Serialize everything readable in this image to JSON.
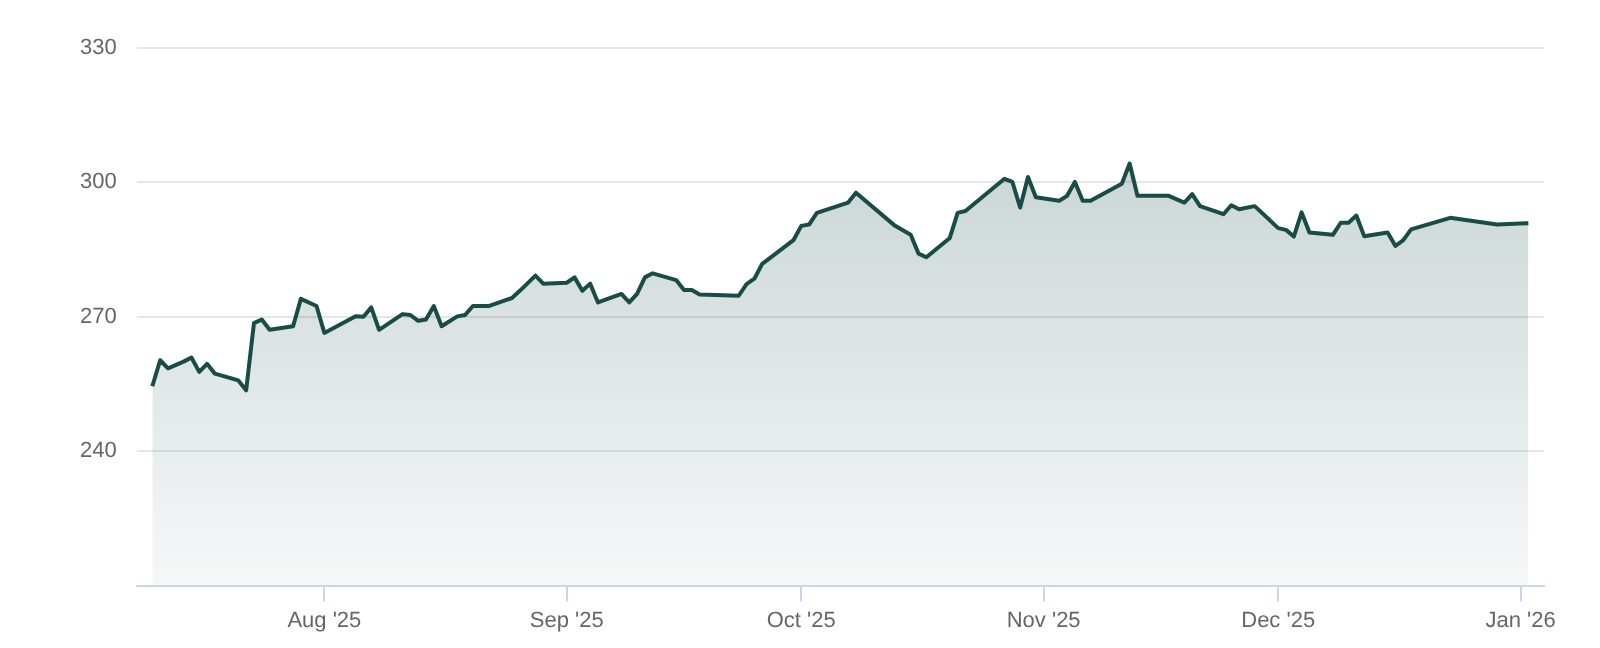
{
  "chart_data": {
    "type": "area",
    "x": [
      "2025-07-10",
      "2025-07-11",
      "2025-07-12",
      "2025-07-14",
      "2025-07-15",
      "2025-07-16",
      "2025-07-17",
      "2025-07-18",
      "2025-07-21",
      "2025-07-22",
      "2025-07-23",
      "2025-07-24",
      "2025-07-25",
      "2025-07-28",
      "2025-07-29",
      "2025-07-31",
      "2025-08-01",
      "2025-08-05",
      "2025-08-06",
      "2025-08-07",
      "2025-08-08",
      "2025-08-11",
      "2025-08-12",
      "2025-08-13",
      "2025-08-14",
      "2025-08-15",
      "2025-08-16",
      "2025-08-18",
      "2025-08-19",
      "2025-08-20",
      "2025-08-22",
      "2025-08-25",
      "2025-08-26",
      "2025-08-28",
      "2025-08-29",
      "2025-09-01",
      "2025-09-02",
      "2025-09-03",
      "2025-09-04",
      "2025-09-05",
      "2025-09-08",
      "2025-09-09",
      "2025-09-10",
      "2025-09-11",
      "2025-09-12",
      "2025-09-15",
      "2025-09-16",
      "2025-09-17",
      "2025-09-18",
      "2025-09-23",
      "2025-09-24",
      "2025-09-25",
      "2025-09-26",
      "2025-09-30",
      "2025-10-01",
      "2025-10-02",
      "2025-10-03",
      "2025-10-07",
      "2025-10-08",
      "2025-10-13",
      "2025-10-15",
      "2025-10-16",
      "2025-10-17",
      "2025-10-20",
      "2025-10-21",
      "2025-10-22",
      "2025-10-27",
      "2025-10-28",
      "2025-10-29",
      "2025-10-30",
      "2025-10-31",
      "2025-11-03",
      "2025-11-04",
      "2025-11-05",
      "2025-11-06",
      "2025-11-07",
      "2025-11-11",
      "2025-11-12",
      "2025-11-13",
      "2025-11-17",
      "2025-11-19",
      "2025-11-20",
      "2025-11-21",
      "2025-11-24",
      "2025-11-25",
      "2025-11-26",
      "2025-11-28",
      "2025-12-01",
      "2025-12-02",
      "2025-12-03",
      "2025-12-04",
      "2025-12-05",
      "2025-12-08",
      "2025-12-09",
      "2025-12-10",
      "2025-12-11",
      "2025-12-12",
      "2025-12-15",
      "2025-12-16",
      "2025-12-17",
      "2025-12-18",
      "2025-12-23",
      "2025-12-29",
      "2026-01-02"
    ],
    "series": [
      {
        "color": "#174c47",
        "values": [
          254.5,
          260.3,
          258.5,
          260,
          260.9,
          257.7,
          259.5,
          257.3,
          255.8,
          253.6,
          268.6,
          269.4,
          267.1,
          267.9,
          274,
          272.4,
          266.4,
          270.1,
          270,
          272.1,
          267.1,
          270.6,
          270.4,
          269.1,
          269.4,
          272.4,
          267.9,
          270.1,
          270.4,
          272.4,
          272.4,
          274.2,
          275.8,
          279.2,
          277.4,
          277.6,
          278.8,
          275.8,
          277.4,
          273.2,
          275.1,
          273.2,
          275.1,
          278.8,
          279.7,
          278.2,
          276,
          276,
          275,
          274.7,
          277.3,
          278.5,
          281.8,
          287.1,
          290.3,
          290.6,
          293.2,
          295.5,
          297.7,
          290.3,
          288.3,
          284.1,
          283.3,
          287.6,
          293.2,
          293.6,
          300.8,
          300.1,
          294.4,
          301.2,
          296.7,
          295.9,
          297,
          300.1,
          295.9,
          295.9,
          299.7,
          304.2,
          297,
          297,
          295.5,
          297.4,
          294.7,
          292.9,
          294.9,
          294,
          294.7,
          289.8,
          289.4,
          287.9,
          293.3,
          288.8,
          288.3,
          291,
          291,
          292.6,
          288,
          288.8,
          285.8,
          287.1,
          289.5,
          292.1,
          290.6,
          290.9
        ]
      }
    ],
    "xlim": [
      "2025-07-08",
      "2026-01-04"
    ],
    "xticks": [
      {
        "value": "2025-08-01",
        "label": "Aug '25"
      },
      {
        "value": "2025-09-01",
        "label": "Sep '25"
      },
      {
        "value": "2025-10-01",
        "label": "Oct '25"
      },
      {
        "value": "2025-11-01",
        "label": "Nov '25"
      },
      {
        "value": "2025-12-01",
        "label": "Dec '25"
      },
      {
        "value": "2026-01-01",
        "label": "Jan '26"
      }
    ],
    "ylim": [
      210,
      330
    ],
    "yticks": [
      240,
      270,
      300,
      330
    ],
    "grid": "y",
    "legend": false,
    "marker": "none",
    "line_style": "solid"
  }
}
